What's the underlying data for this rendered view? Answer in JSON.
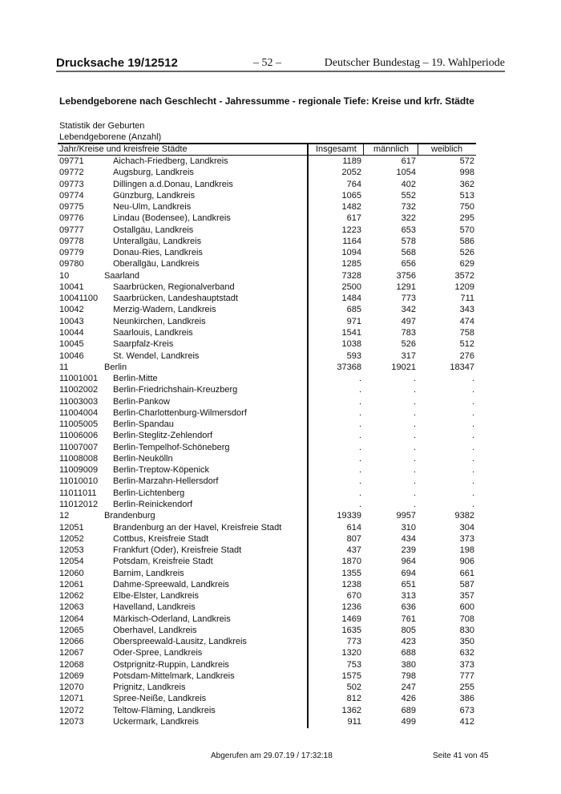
{
  "header": {
    "doc_prefix": "Drucksache 19/",
    "doc_number": "12512",
    "page": "– 52 –",
    "publisher": "Deutscher Bundestag – 19. Wahlperiode"
  },
  "title": "Lebendgeborene nach Geschlecht - Jahressumme - regionale Tiefe: Kreise und krfr. Städte",
  "subtitle1": "Statistik der Geburten",
  "subtitle2": "Lebendgeborene (Anzahl)",
  "columns": {
    "region": "Jahr/Kreise und kreisfreie Städte",
    "total": "Insgesamt",
    "male": "männlich",
    "female": "weiblich"
  },
  "rows": [
    {
      "code": "09771",
      "name": "Aichach-Friedberg, Landkreis",
      "total": "1189",
      "male": "617",
      "female": "572"
    },
    {
      "code": "09772",
      "name": "Augsburg, Landkreis",
      "total": "2052",
      "male": "1054",
      "female": "998"
    },
    {
      "code": "09773",
      "name": "Dillingen a.d.Donau, Landkreis",
      "total": "764",
      "male": "402",
      "female": "362"
    },
    {
      "code": "09774",
      "name": "Günzburg, Landkreis",
      "total": "1065",
      "male": "552",
      "female": "513"
    },
    {
      "code": "09775",
      "name": "Neu-Ulm, Landkreis",
      "total": "1482",
      "male": "732",
      "female": "750"
    },
    {
      "code": "09776",
      "name": "Lindau (Bodensee), Landkreis",
      "total": "617",
      "male": "322",
      "female": "295"
    },
    {
      "code": "09777",
      "name": "Ostallgäu, Landkreis",
      "total": "1223",
      "male": "653",
      "female": "570"
    },
    {
      "code": "09778",
      "name": "Unterallgäu, Landkreis",
      "total": "1164",
      "male": "578",
      "female": "586"
    },
    {
      "code": "09779",
      "name": "Donau-Ries, Landkreis",
      "total": "1094",
      "male": "568",
      "female": "526"
    },
    {
      "code": "09780",
      "name": "Oberallgäu, Landkreis",
      "total": "1285",
      "male": "656",
      "female": "629"
    },
    {
      "code": "10",
      "name": "Saarland",
      "total": "7328",
      "male": "3756",
      "female": "3572",
      "state": true
    },
    {
      "code": "10041",
      "name": "Saarbrücken, Regionalverband",
      "total": "2500",
      "male": "1291",
      "female": "1209"
    },
    {
      "code": "10041100",
      "name": "Saarbrücken, Landeshauptstadt",
      "total": "1484",
      "male": "773",
      "female": "711"
    },
    {
      "code": "10042",
      "name": "Merzig-Wadern, Landkreis",
      "total": "685",
      "male": "342",
      "female": "343"
    },
    {
      "code": "10043",
      "name": "Neunkirchen, Landkreis",
      "total": "971",
      "male": "497",
      "female": "474"
    },
    {
      "code": "10044",
      "name": "Saarlouis, Landkreis",
      "total": "1541",
      "male": "783",
      "female": "758"
    },
    {
      "code": "10045",
      "name": "Saarpfalz-Kreis",
      "total": "1038",
      "male": "526",
      "female": "512"
    },
    {
      "code": "10046",
      "name": "St. Wendel, Landkreis",
      "total": "593",
      "male": "317",
      "female": "276"
    },
    {
      "code": "11",
      "name": "Berlin",
      "total": "37368",
      "male": "19021",
      "female": "18347",
      "state": true
    },
    {
      "code": "11001001",
      "name": "Berlin-Mitte",
      "total": ".",
      "male": ".",
      "female": "."
    },
    {
      "code": "11002002",
      "name": "Berlin-Friedrichshain-Kreuzberg",
      "total": ".",
      "male": ".",
      "female": "."
    },
    {
      "code": "11003003",
      "name": "Berlin-Pankow",
      "total": ".",
      "male": ".",
      "female": "."
    },
    {
      "code": "11004004",
      "name": "Berlin-Charlottenburg-Wilmersdorf",
      "total": ".",
      "male": ".",
      "female": "."
    },
    {
      "code": "11005005",
      "name": "Berlin-Spandau",
      "total": ".",
      "male": ".",
      "female": "."
    },
    {
      "code": "11006006",
      "name": "Berlin-Steglitz-Zehlendorf",
      "total": ".",
      "male": ".",
      "female": "."
    },
    {
      "code": "11007007",
      "name": "Berlin-Tempelhof-Schöneberg",
      "total": ".",
      "male": ".",
      "female": "."
    },
    {
      "code": "11008008",
      "name": "Berlin-Neukölln",
      "total": ".",
      "male": ".",
      "female": "."
    },
    {
      "code": "11009009",
      "name": "Berlin-Treptow-Köpenick",
      "total": ".",
      "male": ".",
      "female": "."
    },
    {
      "code": "11010010",
      "name": "Berlin-Marzahn-Hellersdorf",
      "total": ".",
      "male": ".",
      "female": "."
    },
    {
      "code": "11011011",
      "name": "Berlin-Lichtenberg",
      "total": ".",
      "male": ".",
      "female": "."
    },
    {
      "code": "11012012",
      "name": "Berlin-Reinickendorf",
      "total": ".",
      "male": ".",
      "female": "."
    },
    {
      "code": "12",
      "name": "Brandenburg",
      "total": "19339",
      "male": "9957",
      "female": "9382",
      "state": true
    },
    {
      "code": "12051",
      "name": "Brandenburg an der Havel, Kreisfreie Stadt",
      "total": "614",
      "male": "310",
      "female": "304"
    },
    {
      "code": "12052",
      "name": "Cottbus, Kreisfreie Stadt",
      "total": "807",
      "male": "434",
      "female": "373"
    },
    {
      "code": "12053",
      "name": "Frankfurt (Oder), Kreisfreie Stadt",
      "total": "437",
      "male": "239",
      "female": "198"
    },
    {
      "code": "12054",
      "name": "Potsdam, Kreisfreie Stadt",
      "total": "1870",
      "male": "964",
      "female": "906"
    },
    {
      "code": "12060",
      "name": "Barnim, Landkreis",
      "total": "1355",
      "male": "694",
      "female": "661"
    },
    {
      "code": "12061",
      "name": "Dahme-Spreewald, Landkreis",
      "total": "1238",
      "male": "651",
      "female": "587"
    },
    {
      "code": "12062",
      "name": "Elbe-Elster, Landkreis",
      "total": "670",
      "male": "313",
      "female": "357"
    },
    {
      "code": "12063",
      "name": "Havelland, Landkreis",
      "total": "1236",
      "male": "636",
      "female": "600"
    },
    {
      "code": "12064",
      "name": "Märkisch-Oderland, Landkreis",
      "total": "1469",
      "male": "761",
      "female": "708"
    },
    {
      "code": "12065",
      "name": "Oberhavel, Landkreis",
      "total": "1635",
      "male": "805",
      "female": "830"
    },
    {
      "code": "12066",
      "name": "Oberspreewald-Lausitz, Landkreis",
      "total": "773",
      "male": "423",
      "female": "350"
    },
    {
      "code": "12067",
      "name": "Oder-Spree, Landkreis",
      "total": "1320",
      "male": "688",
      "female": "632"
    },
    {
      "code": "12068",
      "name": "Ostprignitz-Ruppin, Landkreis",
      "total": "753",
      "male": "380",
      "female": "373"
    },
    {
      "code": "12069",
      "name": "Potsdam-Mittelmark, Landkreis",
      "total": "1575",
      "male": "798",
      "female": "777"
    },
    {
      "code": "12070",
      "name": "Prignitz, Landkreis",
      "total": "502",
      "male": "247",
      "female": "255"
    },
    {
      "code": "12071",
      "name": "Spree-Neiße, Landkreis",
      "total": "812",
      "male": "426",
      "female": "386"
    },
    {
      "code": "12072",
      "name": "Teltow-Fläming, Landkreis",
      "total": "1362",
      "male": "689",
      "female": "673"
    },
    {
      "code": "12073",
      "name": "Uckermark, Landkreis",
      "total": "911",
      "male": "499",
      "female": "412"
    }
  ],
  "footer": {
    "retrieved": "Abgerufen am 29.07.19 / 17:32:18",
    "page": "Seite 41 von 45"
  }
}
